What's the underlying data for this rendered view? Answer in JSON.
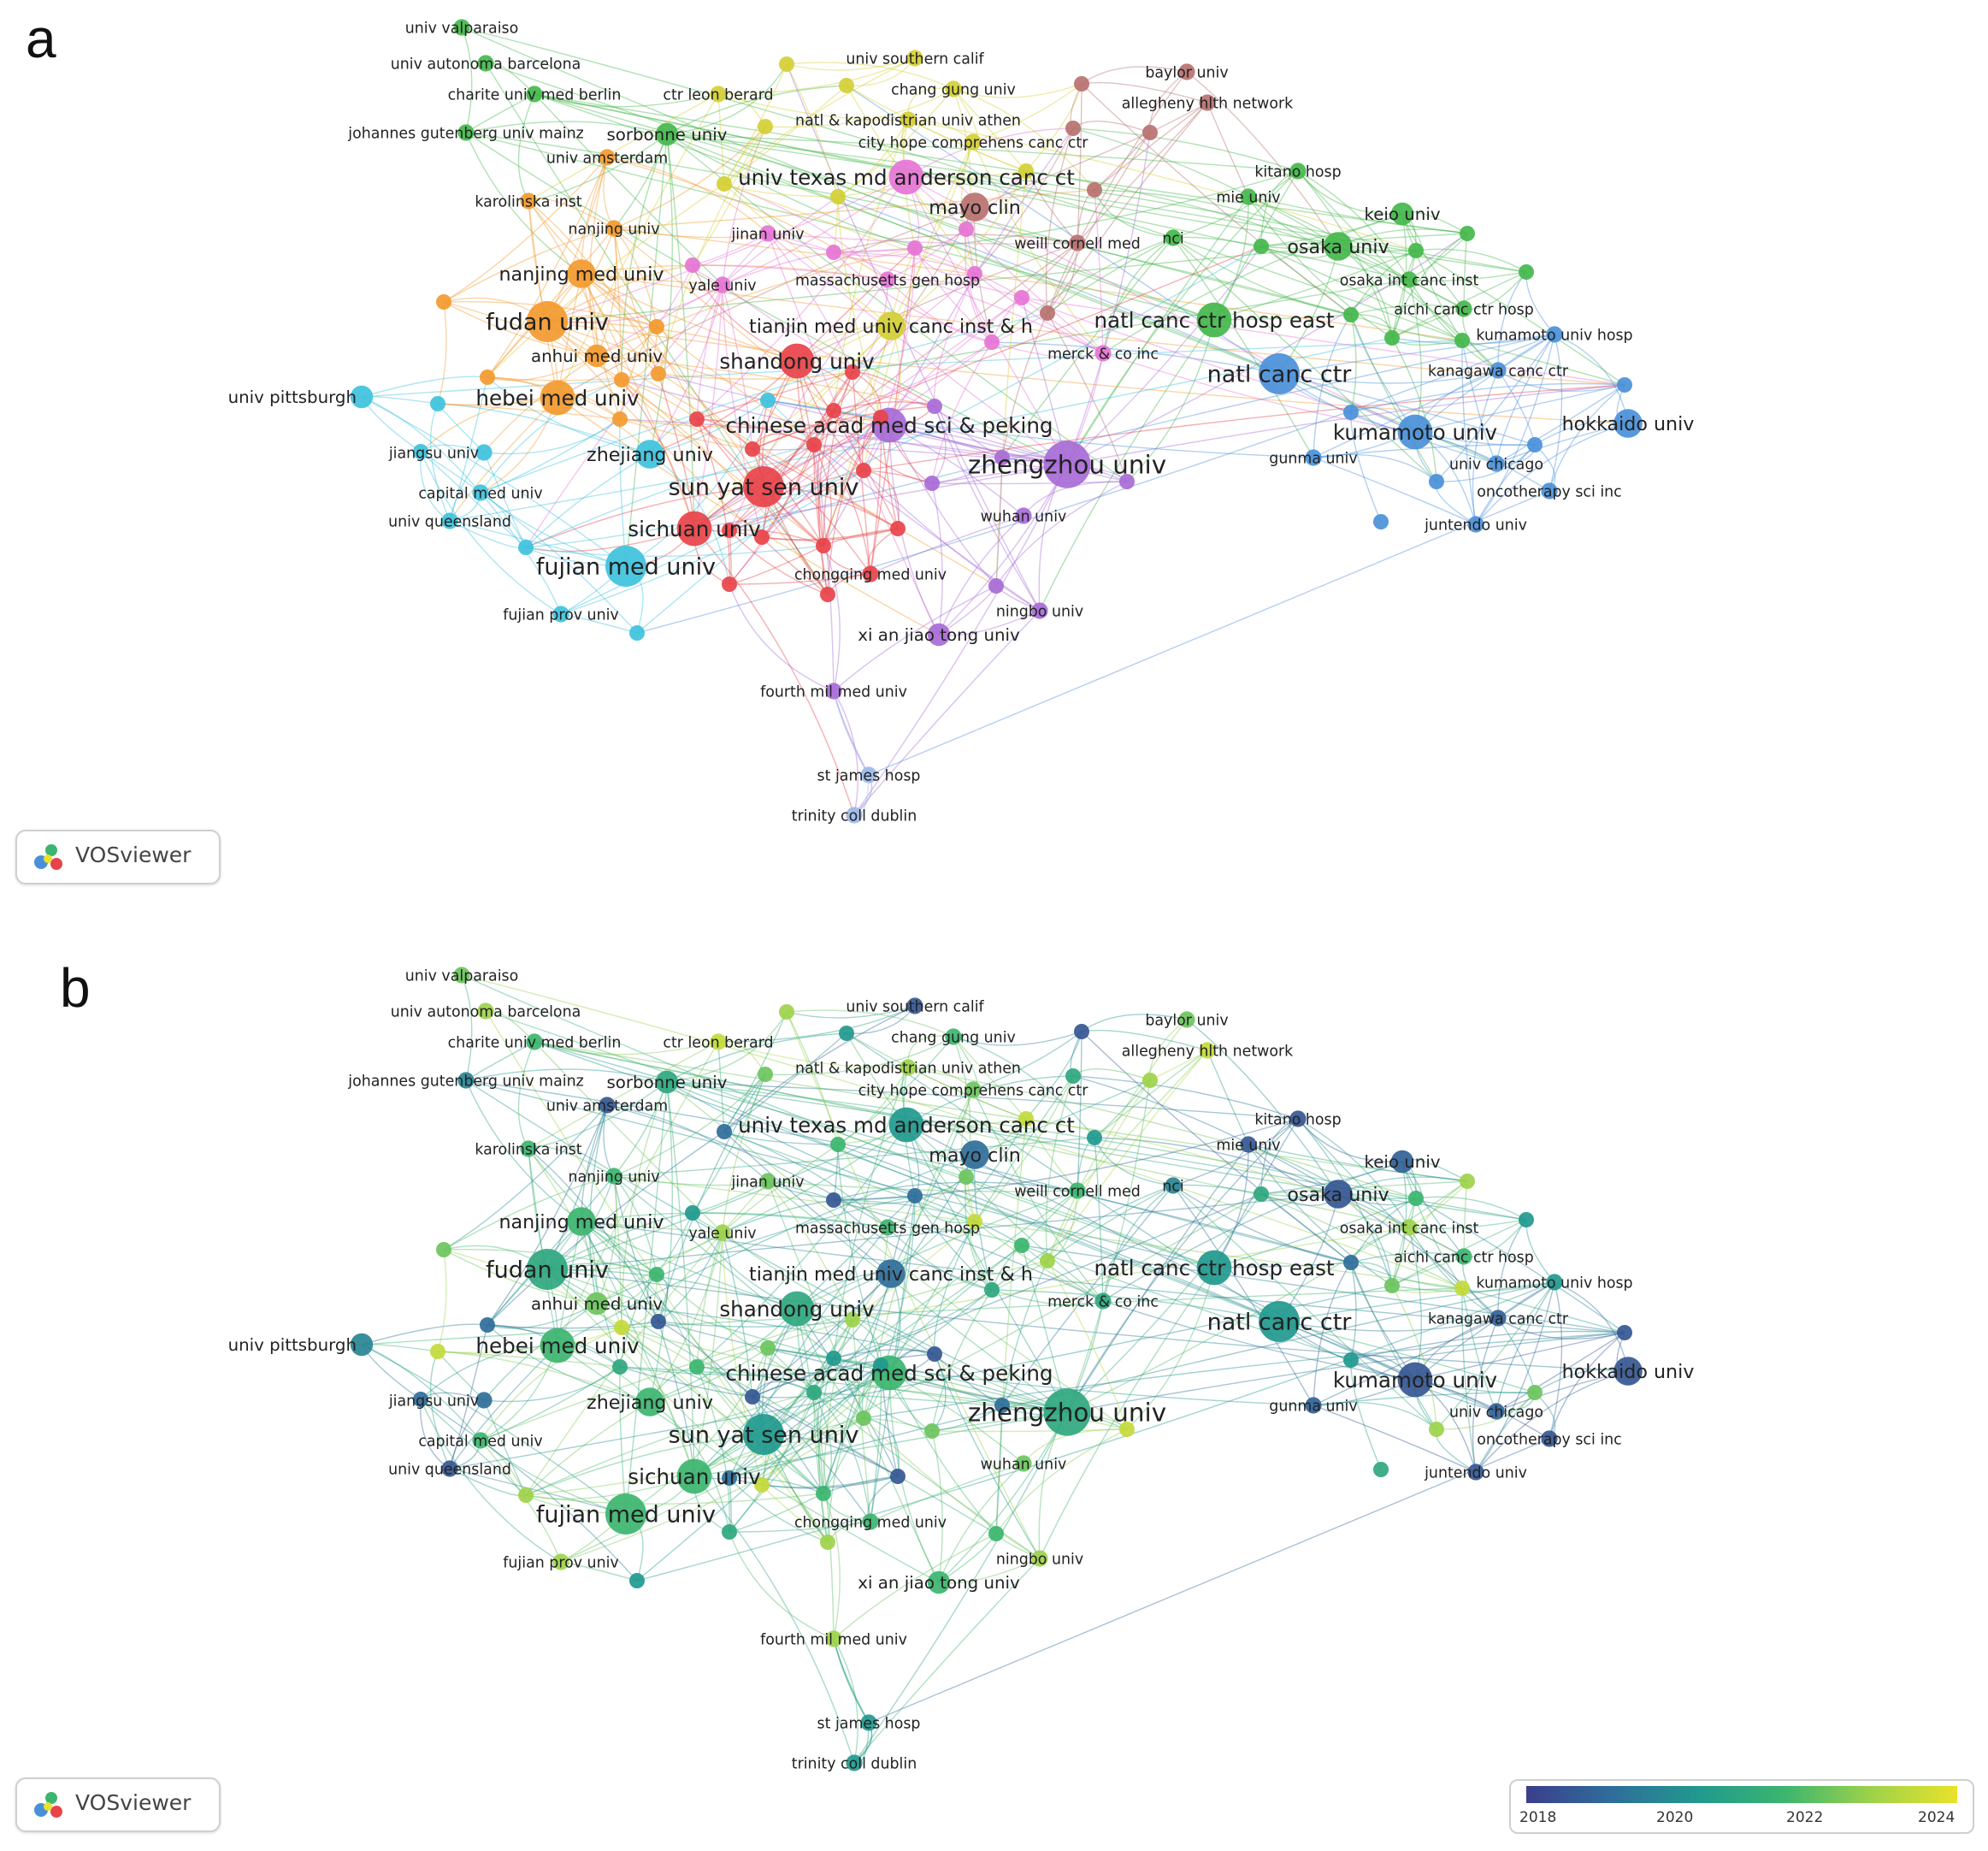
{
  "panels": [
    {
      "letter": "a",
      "mode": "cluster"
    },
    {
      "letter": "b",
      "mode": "overlay"
    }
  ],
  "brand": {
    "name": "VOSviewer",
    "logo": "vosviewer-logo-icon"
  },
  "colors": {
    "cluster": {
      "red": "#e8434a",
      "orange": "#f39a2f",
      "yellow": "#d4cf35",
      "green": "#44b74c",
      "blue": "#4a90d9",
      "cyan": "#3ec2dd",
      "purple": "#a86bd6",
      "pink": "#e674d6",
      "brown": "#b8716f",
      "lightblue": "#9cb8e8"
    },
    "overlay": {
      "2018": "#3b3f8c",
      "2020": "#2f6e9a",
      "2021": "#21998e",
      "2022": "#3cb56f",
      "2023": "#9dd24a",
      "2024": "#e9e22a"
    }
  },
  "legend": {
    "ticks": [
      "2018",
      "2020",
      "2022",
      "2024"
    ]
  },
  "chart_data": {
    "type": "network",
    "nodes": [
      {
        "label": "univ valparaiso",
        "cluster": "green",
        "year": 2022.5,
        "weight": 1
      },
      {
        "label": "univ autonoma barcelona",
        "cluster": "green",
        "year": 2023,
        "weight": 1
      },
      {
        "label": "charite univ med berlin",
        "cluster": "green",
        "year": 2022,
        "weight": 1
      },
      {
        "label": "ctr leon berard",
        "cluster": "yellow",
        "year": 2023.5,
        "weight": 1
      },
      {
        "label": "univ southern calif",
        "cluster": "yellow",
        "year": 2019,
        "weight": 1
      },
      {
        "label": "chang gung univ",
        "cluster": "yellow",
        "year": 2022,
        "weight": 1
      },
      {
        "label": "baylor univ",
        "cluster": "brown",
        "year": 2022.5,
        "weight": 1
      },
      {
        "label": "allegheny hlth network",
        "cluster": "brown",
        "year": 2023.5,
        "weight": 1
      },
      {
        "label": "johannes gutenberg univ mainz",
        "cluster": "green",
        "year": 2020.5,
        "weight": 1
      },
      {
        "label": "sorbonne univ",
        "cluster": "green",
        "year": 2021.5,
        "weight": 2
      },
      {
        "label": "natl & kapodistrian univ athen",
        "cluster": "yellow",
        "year": 2023,
        "weight": 1
      },
      {
        "label": "city hope comprehens canc ctr",
        "cluster": "yellow",
        "year": 2022.5,
        "weight": 1
      },
      {
        "label": "univ amsterdam",
        "cluster": "orange",
        "year": 2019,
        "weight": 1
      },
      {
        "label": "univ texas md anderson canc ct",
        "cluster": "pink",
        "year": 2021,
        "weight": 4
      },
      {
        "label": "kitano hosp",
        "cluster": "green",
        "year": 2019,
        "weight": 1
      },
      {
        "label": "karolinska inst",
        "cluster": "orange",
        "year": 2022,
        "weight": 1
      },
      {
        "label": "mayo clin",
        "cluster": "brown",
        "year": 2020,
        "weight": 3
      },
      {
        "label": "mie univ",
        "cluster": "green",
        "year": 2019,
        "weight": 1
      },
      {
        "label": "keio univ",
        "cluster": "green",
        "year": 2019.5,
        "weight": 2
      },
      {
        "label": "nanjing univ",
        "cluster": "orange",
        "year": 2022,
        "weight": 1
      },
      {
        "label": "jinan univ",
        "cluster": "pink",
        "year": 2022.5,
        "weight": 1
      },
      {
        "label": "weill cornell med",
        "cluster": "brown",
        "year": 2022,
        "weight": 1
      },
      {
        "label": "nci",
        "cluster": "green",
        "year": 2020.5,
        "weight": 1
      },
      {
        "label": "osaka univ",
        "cluster": "green",
        "year": 2019,
        "weight": 3
      },
      {
        "label": "nanjing med univ",
        "cluster": "orange",
        "year": 2022,
        "weight": 3
      },
      {
        "label": "yale univ",
        "cluster": "pink",
        "year": 2023,
        "weight": 1
      },
      {
        "label": "massachusetts gen hosp",
        "cluster": "pink",
        "year": 2022,
        "weight": 1
      },
      {
        "label": "osaka int canc inst",
        "cluster": "green",
        "year": 2023,
        "weight": 1
      },
      {
        "label": "aichi canc ctr hosp",
        "cluster": "green",
        "year": 2022,
        "weight": 1
      },
      {
        "label": "fudan univ",
        "cluster": "orange",
        "year": 2021.5,
        "weight": 5
      },
      {
        "label": "tianjin med univ canc inst & h",
        "cluster": "yellow",
        "year": 2020,
        "weight": 3
      },
      {
        "label": "natl canc ctr hosp east",
        "cluster": "green",
        "year": 2021,
        "weight": 4
      },
      {
        "label": "kumamoto univ hosp",
        "cluster": "blue",
        "year": 2021,
        "weight": 1
      },
      {
        "label": "anhui med univ",
        "cluster": "orange",
        "year": 2022.5,
        "weight": 2
      },
      {
        "label": "merck & co inc",
        "cluster": "pink",
        "year": 2021.5,
        "weight": 1
      },
      {
        "label": "shandong univ",
        "cluster": "red",
        "year": 2021.5,
        "weight": 4
      },
      {
        "label": "kanagawa canc ctr",
        "cluster": "blue",
        "year": 2019.5,
        "weight": 1
      },
      {
        "label": "natl canc ctr",
        "cluster": "blue",
        "year": 2021,
        "weight": 5
      },
      {
        "label": "univ pittsburgh",
        "cluster": "cyan",
        "year": 2020.5,
        "weight": 2
      },
      {
        "label": "hebei med univ",
        "cluster": "orange",
        "year": 2022,
        "weight": 4
      },
      {
        "label": "hokkaido univ",
        "cluster": "blue",
        "year": 2019,
        "weight": 3
      },
      {
        "label": "chinese acad med sci & peking",
        "cluster": "purple",
        "year": 2022,
        "weight": 4
      },
      {
        "label": "kumamoto univ",
        "cluster": "blue",
        "year": 2019,
        "weight": 4
      },
      {
        "label": "jiangsu univ",
        "cluster": "cyan",
        "year": 2020,
        "weight": 1
      },
      {
        "label": "zhejiang univ",
        "cluster": "cyan",
        "year": 2022,
        "weight": 3
      },
      {
        "label": "zhengzhou univ",
        "cluster": "purple",
        "year": 2021.5,
        "weight": 6
      },
      {
        "label": "gunma univ",
        "cluster": "blue",
        "year": 2019.5,
        "weight": 1
      },
      {
        "label": "univ chicago",
        "cluster": "blue",
        "year": 2019.5,
        "weight": 1
      },
      {
        "label": "capital med univ",
        "cluster": "cyan",
        "year": 2022,
        "weight": 1
      },
      {
        "label": "sun yat sen univ",
        "cluster": "red",
        "year": 2021,
        "weight": 5
      },
      {
        "label": "univ queensland",
        "cluster": "cyan",
        "year": 2019,
        "weight": 1
      },
      {
        "label": "oncotherapy sci inc",
        "cluster": "blue",
        "year": 2019,
        "weight": 1
      },
      {
        "label": "wuhan univ",
        "cluster": "purple",
        "year": 2022.5,
        "weight": 1
      },
      {
        "label": "sichuan univ",
        "cluster": "red",
        "year": 2022,
        "weight": 4
      },
      {
        "label": "juntendo univ",
        "cluster": "blue",
        "year": 2019,
        "weight": 1
      },
      {
        "label": "fujian med univ",
        "cluster": "cyan",
        "year": 2022,
        "weight": 5
      },
      {
        "label": "chongqing med univ",
        "cluster": "red",
        "year": 2022,
        "weight": 1
      },
      {
        "label": "ningbo univ",
        "cluster": "purple",
        "year": 2023,
        "weight": 1
      },
      {
        "label": "fujian prov univ",
        "cluster": "cyan",
        "year": 2023,
        "weight": 1
      },
      {
        "label": "xi an jiao tong univ",
        "cluster": "purple",
        "year": 2022,
        "weight": 2
      },
      {
        "label": "fourth mil med univ",
        "cluster": "purple",
        "year": 2023,
        "weight": 1
      },
      {
        "label": "st james hosp",
        "cluster": "lightblue",
        "year": 2021,
        "weight": 1
      },
      {
        "label": "trinity coll dublin",
        "cluster": "lightblue",
        "year": 2021,
        "weight": 1
      }
    ]
  }
}
